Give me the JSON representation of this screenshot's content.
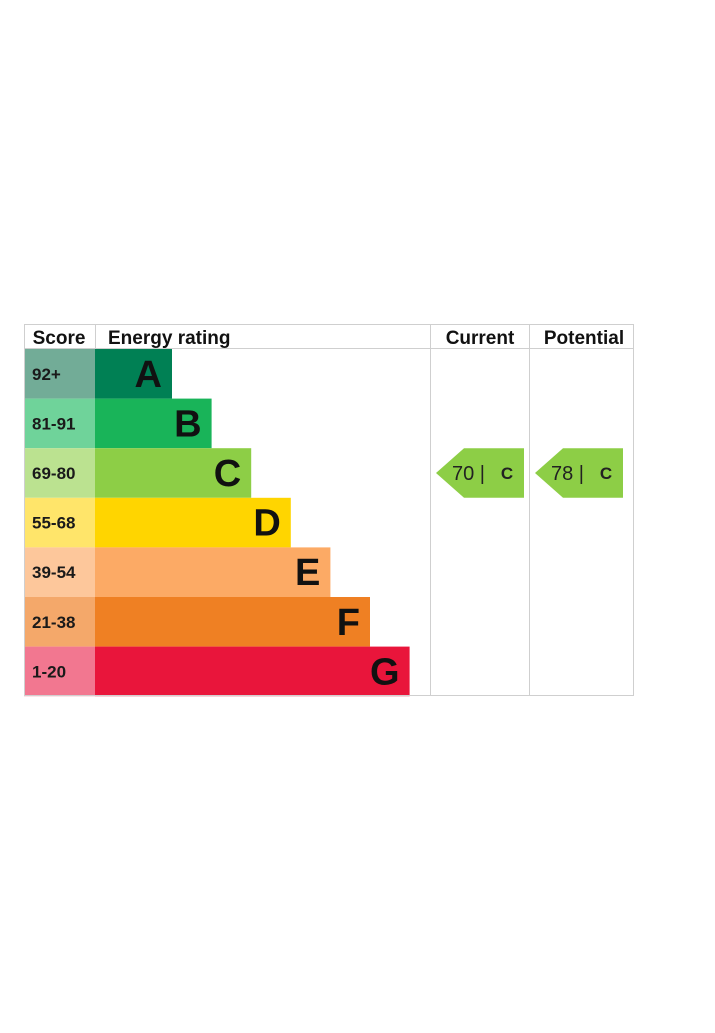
{
  "chart_data": {
    "type": "bar",
    "headers": {
      "score": "Score",
      "rating": "Energy rating",
      "current": "Current",
      "potential": "Potential"
    },
    "bands": [
      {
        "range": "92+",
        "letter": "A",
        "color": "#008054",
        "score_bg": "#72ac97"
      },
      {
        "range": "81-91",
        "letter": "B",
        "color": "#19b459",
        "score_bg": "#6fd39a"
      },
      {
        "range": "69-80",
        "letter": "C",
        "color": "#8dce46",
        "score_bg": "#bbe290"
      },
      {
        "range": "55-68",
        "letter": "D",
        "color": "#ffd500",
        "score_bg": "#ffe56a"
      },
      {
        "range": "39-54",
        "letter": "E",
        "color": "#fcaa65",
        "score_bg": "#fdc79b"
      },
      {
        "range": "21-38",
        "letter": "F",
        "color": "#ef8023",
        "score_bg": "#f4a86a"
      },
      {
        "range": "1-20",
        "letter": "G",
        "color": "#e9153b",
        "score_bg": "#f27790"
      }
    ],
    "current": {
      "value": 70,
      "letter": "C",
      "label": "70 |",
      "color": "#8dce46"
    },
    "potential": {
      "value": 78,
      "letter": "C",
      "label": "78 |",
      "color": "#8dce46"
    }
  }
}
